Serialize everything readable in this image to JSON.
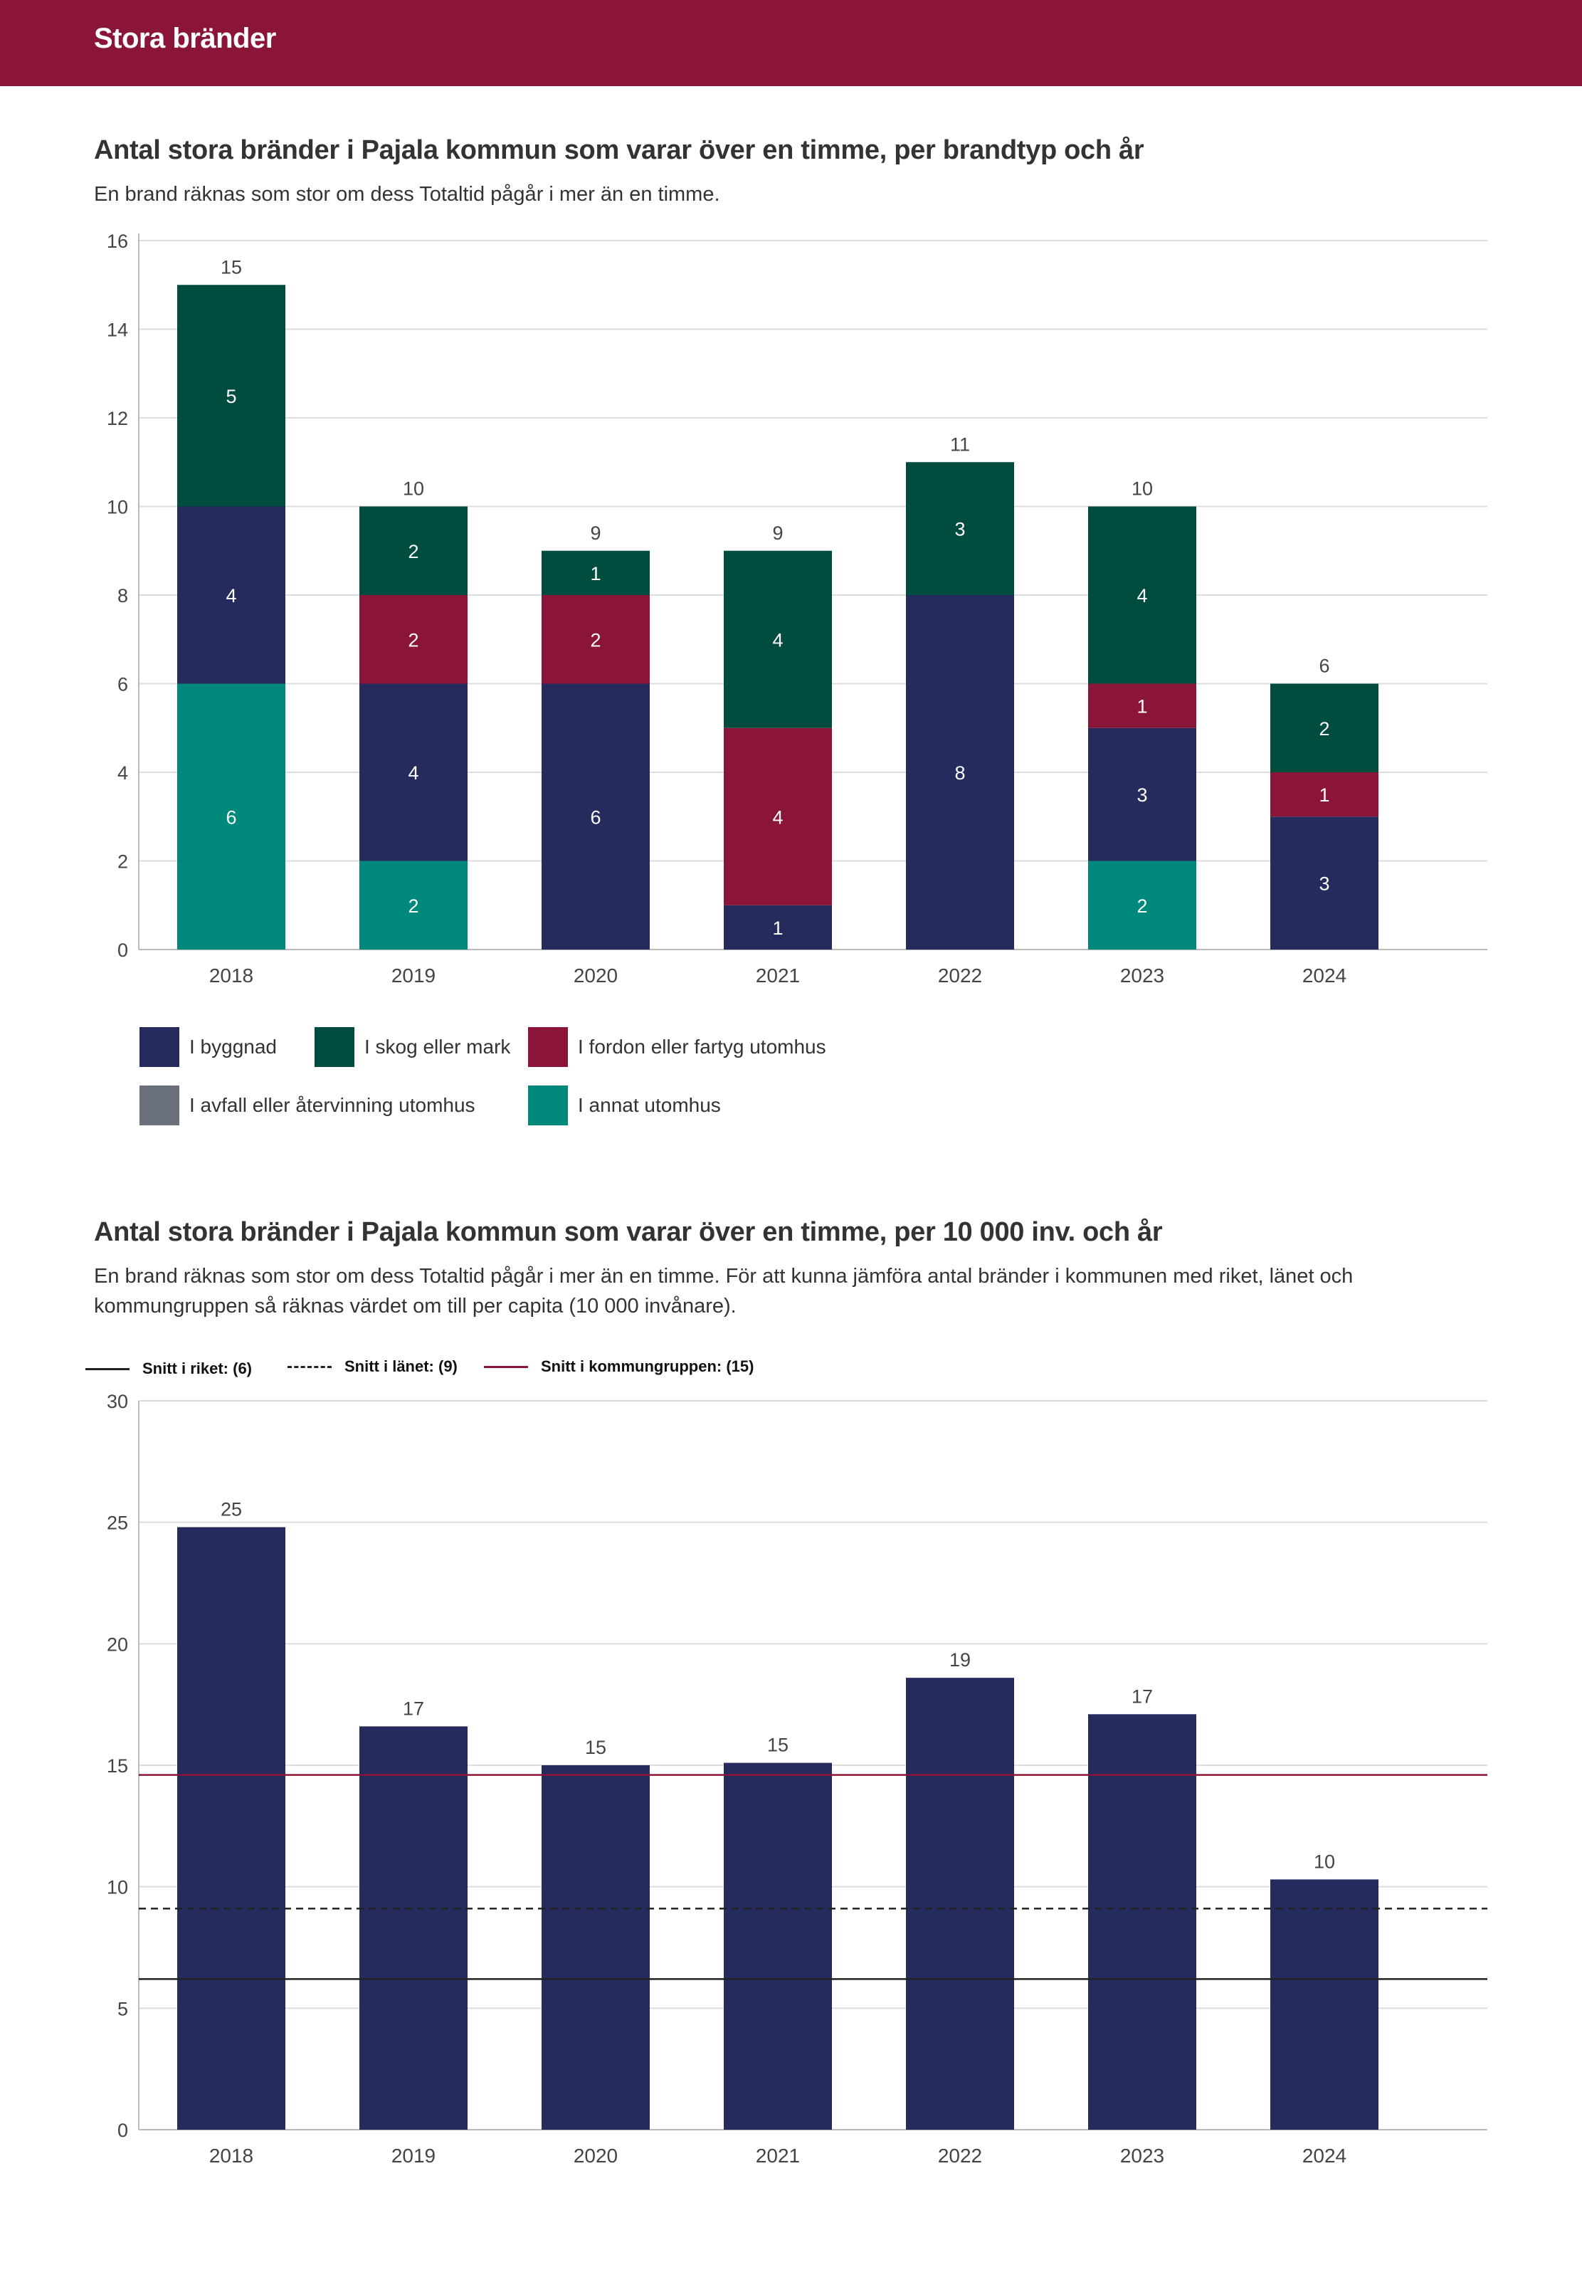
{
  "header": {
    "title": "Stora bränder"
  },
  "chart1": {
    "title": "Antal stora bränder i Pajala kommun som varar över en timme, per brandtyp och år",
    "subtitle": "En brand räknas som stor om dess Totaltid pågår i mer än en timme."
  },
  "chart2": {
    "title": "Antal stora bränder i Pajala kommun som varar över en timme, per 10 000 inv. och år",
    "subtitle": "En brand räknas som stor om dess Totaltid pågår i mer än en timme. För att kunna jämföra antal bränder i kommunen med riket, länet och kommungruppen så räknas värdet om till per capita (10 000 invånare)."
  },
  "legend1": [
    {
      "label": "I byggnad",
      "color": "#252b5c"
    },
    {
      "label": "I skog eller mark",
      "color": "#004d40"
    },
    {
      "label": "I fordon eller fartyg utomhus",
      "color": "#8b1538"
    },
    {
      "label": "I avfall eller återvinning utomhus",
      "color": "#6b717c"
    },
    {
      "label": "I annat utomhus",
      "color": "#00897b"
    }
  ],
  "legend2": [
    {
      "label": "Snitt i riket: (6)",
      "style": "solid",
      "color": "#222222"
    },
    {
      "label": "Snitt i länet: (9)",
      "style": "dashed",
      "color": "#222222"
    },
    {
      "label": "Snitt i kommungruppen: (15)",
      "style": "solid",
      "color": "#8b1538"
    }
  ],
  "chart_data": [
    {
      "type": "bar",
      "stacked": true,
      "title": "Antal stora bränder i Pajala kommun som varar över en timme, per brandtyp och år",
      "categories": [
        "2018",
        "2019",
        "2020",
        "2021",
        "2022",
        "2023",
        "2024"
      ],
      "ylim": [
        0,
        16
      ],
      "yticks": [
        0,
        2,
        4,
        6,
        8,
        10,
        12,
        14,
        16
      ],
      "series": [
        {
          "name": "I annat utomhus",
          "color": "#00897b",
          "values": [
            6,
            2,
            0,
            0,
            0,
            2,
            0
          ]
        },
        {
          "name": "I byggnad",
          "color": "#252b5c",
          "values": [
            4,
            4,
            6,
            1,
            8,
            3,
            3
          ]
        },
        {
          "name": "I fordon eller fartyg utomhus",
          "color": "#8b1538",
          "values": [
            0,
            2,
            2,
            4,
            0,
            1,
            1
          ]
        },
        {
          "name": "I skog eller mark",
          "color": "#004d40",
          "values": [
            5,
            2,
            1,
            4,
            3,
            4,
            2
          ]
        },
        {
          "name": "I avfall eller återvinning utomhus",
          "color": "#6b717c",
          "values": [
            0,
            0,
            0,
            0,
            0,
            0,
            0
          ]
        }
      ],
      "totals": [
        15,
        10,
        9,
        9,
        11,
        10,
        6
      ]
    },
    {
      "type": "bar",
      "title": "Antal stora bränder i Pajala kommun som varar över en timme, per 10 000 inv. och år",
      "categories": [
        "2018",
        "2019",
        "2020",
        "2021",
        "2022",
        "2023",
        "2024"
      ],
      "values": [
        24.8,
        16.6,
        15.0,
        15.1,
        18.6,
        17.1,
        10.3
      ],
      "labels": [
        "25",
        "17",
        "15",
        "15",
        "19",
        "17",
        "10"
      ],
      "bar_color": "#252b5c",
      "ylim": [
        0,
        30
      ],
      "yticks": [
        0,
        5,
        10,
        15,
        20,
        25,
        30
      ],
      "reference_lines": [
        {
          "name": "Snitt i riket",
          "value": 6.2,
          "style": "solid",
          "color": "#222222"
        },
        {
          "name": "Snitt i länet",
          "value": 9.1,
          "style": "dashed",
          "color": "#222222"
        },
        {
          "name": "Snitt i kommungruppen",
          "value": 14.6,
          "style": "solid",
          "color": "#8b1538"
        }
      ]
    }
  ]
}
